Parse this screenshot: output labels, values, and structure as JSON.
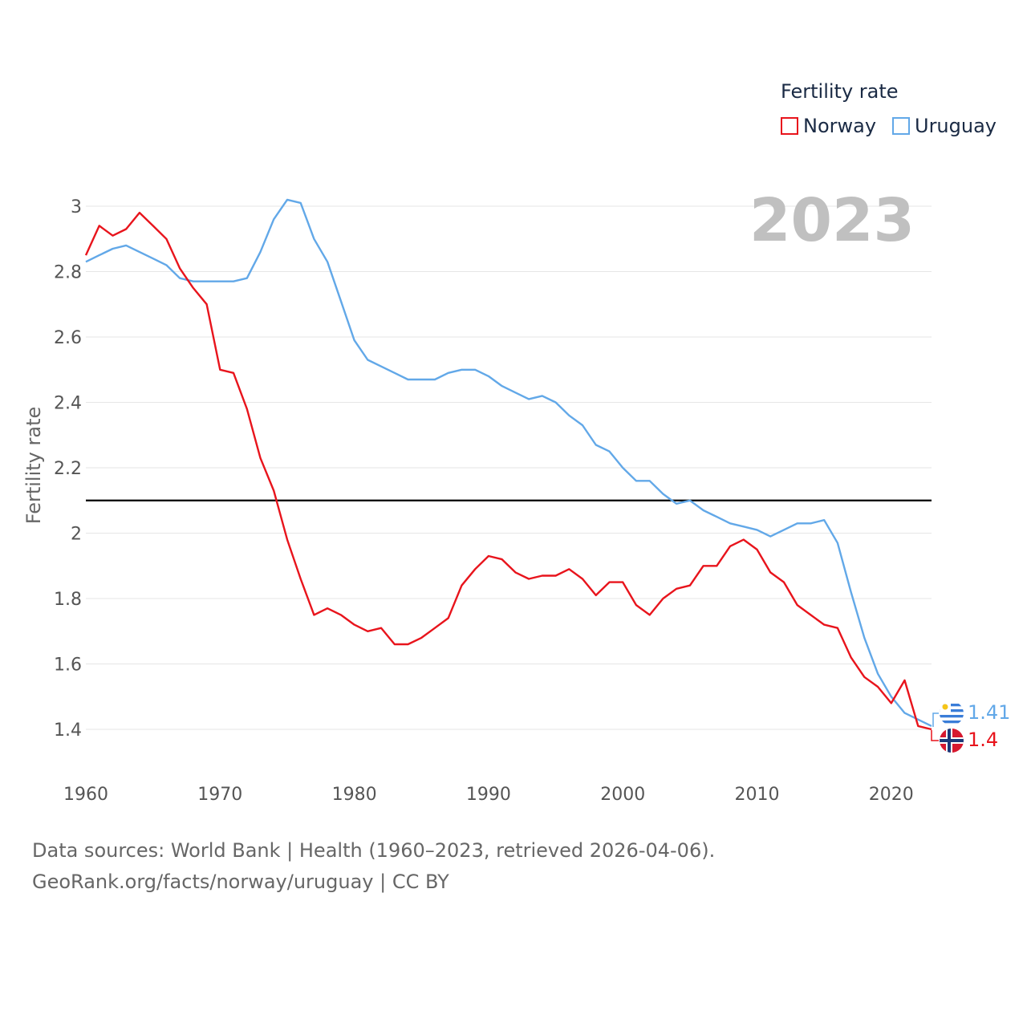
{
  "legend": {
    "title": "Fertility rate",
    "items": [
      {
        "label": "Norway",
        "color": "#e8141c"
      },
      {
        "label": "Uruguay",
        "color": "#62a8e8"
      }
    ]
  },
  "year_overlay": "2023",
  "source": {
    "line1": "Data sources: World Bank | Health (1960–2023, retrieved 2026-04-06).",
    "line2": "GeoRank.org/facts/norway/uruguay | CC BY"
  },
  "end_labels": {
    "uruguay": "1.41",
    "norway": "1.4"
  },
  "icons": {
    "uruguay": "uruguay-flag-icon",
    "norway": "norway-flag-icon"
  },
  "chart_data": {
    "type": "line",
    "title": "",
    "xlabel": "",
    "ylabel": "Fertility rate",
    "xlim": [
      1960,
      2023
    ],
    "ylim": [
      1.3,
      3.05
    ],
    "x_ticks": [
      1960,
      1970,
      1980,
      1990,
      2000,
      2010,
      2020
    ],
    "y_ticks": [
      1.4,
      1.6,
      1.8,
      2,
      2.2,
      2.4,
      2.6,
      2.8,
      3
    ],
    "y_tick_labels": [
      "1.4",
      "1.6",
      "1.8",
      "2",
      "2.2",
      "2.4",
      "2.6",
      "2.8",
      "3"
    ],
    "reference_line": {
      "y": 2.1,
      "color": "#000000"
    },
    "grid": true,
    "x": [
      1960,
      1961,
      1962,
      1963,
      1964,
      1965,
      1966,
      1967,
      1968,
      1969,
      1970,
      1971,
      1972,
      1973,
      1974,
      1975,
      1976,
      1977,
      1978,
      1979,
      1980,
      1981,
      1982,
      1983,
      1984,
      1985,
      1986,
      1987,
      1988,
      1989,
      1990,
      1991,
      1992,
      1993,
      1994,
      1995,
      1996,
      1997,
      1998,
      1999,
      2000,
      2001,
      2002,
      2003,
      2004,
      2005,
      2006,
      2007,
      2008,
      2009,
      2010,
      2011,
      2012,
      2013,
      2014,
      2015,
      2016,
      2017,
      2018,
      2019,
      2020,
      2021,
      2022,
      2023
    ],
    "series": [
      {
        "name": "Norway",
        "color": "#e8141c",
        "values": [
          2.85,
          2.94,
          2.91,
          2.93,
          2.98,
          2.94,
          2.9,
          2.81,
          2.75,
          2.7,
          2.5,
          2.49,
          2.38,
          2.23,
          2.13,
          1.98,
          1.86,
          1.75,
          1.77,
          1.75,
          1.72,
          1.7,
          1.71,
          1.66,
          1.66,
          1.68,
          1.71,
          1.74,
          1.84,
          1.89,
          1.93,
          1.92,
          1.88,
          1.86,
          1.87,
          1.87,
          1.89,
          1.86,
          1.81,
          1.85,
          1.85,
          1.78,
          1.75,
          1.8,
          1.83,
          1.84,
          1.9,
          1.9,
          1.96,
          1.98,
          1.95,
          1.88,
          1.85,
          1.78,
          1.75,
          1.72,
          1.71,
          1.62,
          1.56,
          1.53,
          1.48,
          1.55,
          1.41,
          1.4
        ]
      },
      {
        "name": "Uruguay",
        "color": "#62a8e8",
        "values": [
          2.83,
          2.85,
          2.87,
          2.88,
          2.86,
          2.84,
          2.82,
          2.78,
          2.77,
          2.77,
          2.77,
          2.77,
          2.78,
          2.86,
          2.96,
          3.02,
          3.01,
          2.9,
          2.83,
          2.71,
          2.59,
          2.53,
          2.51,
          2.49,
          2.47,
          2.47,
          2.47,
          2.49,
          2.5,
          2.5,
          2.48,
          2.45,
          2.43,
          2.41,
          2.42,
          2.4,
          2.36,
          2.33,
          2.27,
          2.25,
          2.2,
          2.16,
          2.16,
          2.12,
          2.09,
          2.1,
          2.07,
          2.05,
          2.03,
          2.02,
          2.01,
          1.99,
          2.01,
          2.03,
          2.03,
          2.04,
          1.97,
          1.82,
          1.68,
          1.57,
          1.5,
          1.45,
          1.43,
          1.41
        ]
      }
    ]
  }
}
